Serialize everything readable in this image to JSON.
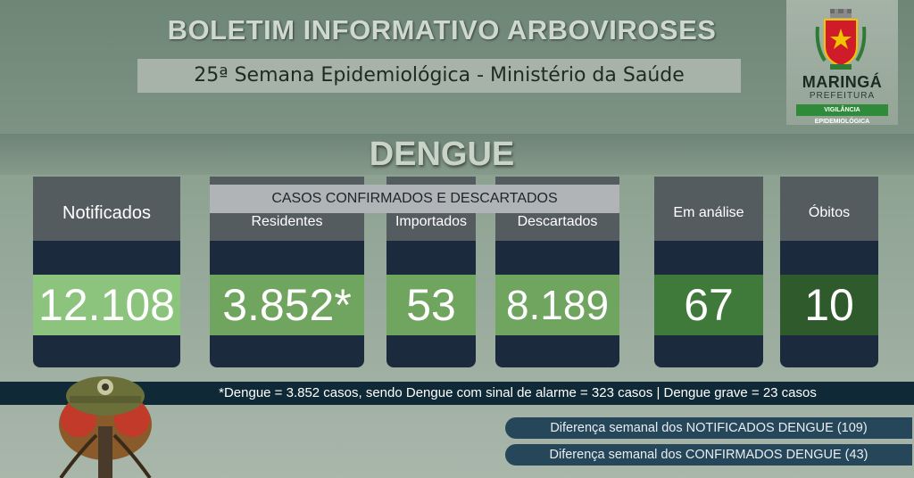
{
  "header": {
    "title": "BOLETIM INFORMATIVO ARBOVIROSES",
    "subtitle": "25ª Semana Epidemiológica - Ministério da Saúde"
  },
  "logo": {
    "name": "MARINGÁ",
    "sub": "PREFEITURA",
    "tag": "VIGILÂNCIA EPIDEMIOLÓGICA",
    "icon": "city-crest-icon"
  },
  "section_title": "DENGUE",
  "cards": {
    "notificados": {
      "label": "Notificados",
      "value": "12.108"
    },
    "group_label": "CASOS CONFIRMADOS E DESCARTADOS",
    "residentes": {
      "label": "Residentes",
      "value": "3.852*"
    },
    "importados": {
      "label": "Importados",
      "value": "53"
    },
    "descartados": {
      "label": "Descartados",
      "value": "8.189"
    },
    "em_analise": {
      "label": "Em análise",
      "value": "67"
    },
    "obitos": {
      "label": "Óbitos",
      "value": "10"
    }
  },
  "note": "*Dengue = 3.852 casos, sendo Dengue com sinal de alarme = 323 casos |  Dengue grave = 23 casos",
  "differences": {
    "notificados": "Diferença semanal dos NOTIFICADOS DENGUE (109)",
    "confirmados": "Diferença semanal dos CONFIRMADOS DENGUE (43)"
  },
  "colors": {
    "value_green": "#6fa55f",
    "value_dark_green": "#2f5a2b",
    "card_navy": "#1b2b3d",
    "card_head": "#555c60"
  }
}
